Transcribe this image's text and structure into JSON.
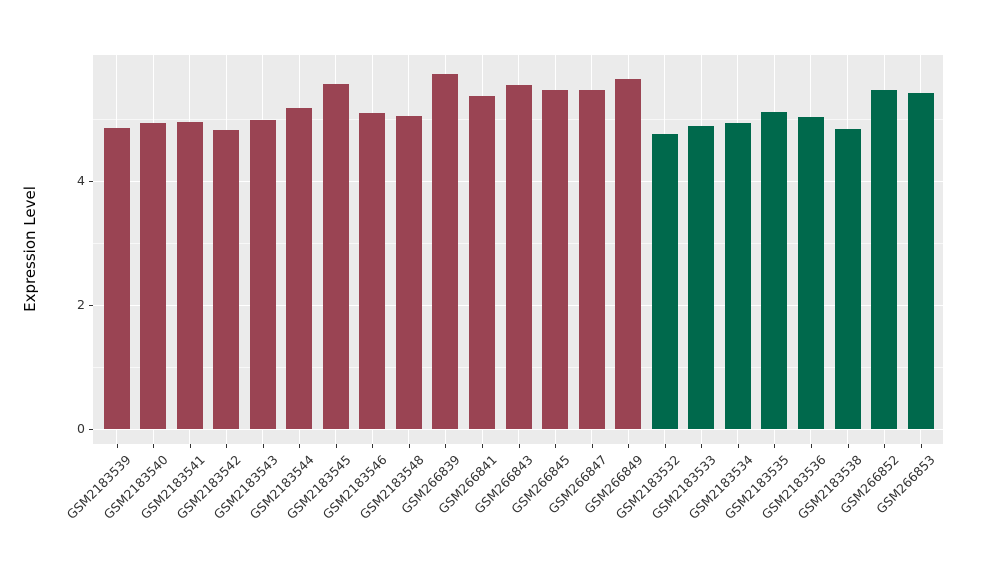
{
  "chart_data": {
    "type": "bar",
    "title": "",
    "xlabel": "",
    "ylabel": "Expression Level",
    "categories": [
      "GSM2183539",
      "GSM2183540",
      "GSM2183541",
      "GSM2183542",
      "GSM2183543",
      "GSM2183544",
      "GSM2183545",
      "GSM2183546",
      "GSM2183548",
      "GSM266839",
      "GSM266841",
      "GSM266843",
      "GSM266845",
      "GSM266847",
      "GSM266849",
      "GSM2183532",
      "GSM2183533",
      "GSM2183534",
      "GSM2183535",
      "GSM2183536",
      "GSM2183538",
      "GSM266852",
      "GSM266853"
    ],
    "values": [
      4.86,
      4.94,
      4.95,
      4.82,
      4.99,
      5.17,
      5.56,
      5.1,
      5.05,
      5.73,
      5.37,
      5.55,
      5.47,
      5.46,
      5.64,
      4.76,
      4.89,
      4.94,
      5.11,
      5.04,
      4.84,
      5.47,
      5.42
    ],
    "bar_colors": [
      "#9A4453",
      "#9A4453",
      "#9A4453",
      "#9A4453",
      "#9A4453",
      "#9A4453",
      "#9A4453",
      "#9A4453",
      "#9A4453",
      "#9A4453",
      "#9A4453",
      "#9A4453",
      "#9A4453",
      "#9A4453",
      "#9A4453",
      "#00694C",
      "#00694C",
      "#00694C",
      "#00694C",
      "#00694C",
      "#00694C",
      "#00694C",
      "#00694C"
    ],
    "group_colors": {
      "group1": "#9A4453",
      "group2": "#00694C"
    },
    "yticks": [
      0,
      2,
      4
    ],
    "minor_gridlines": [
      1,
      3,
      5
    ],
    "ylim": [
      -0.24,
      6.03
    ],
    "grid": true,
    "legend": false,
    "panel_background": "#EBEBEB",
    "gridline_color": "#FFFFFF",
    "axis_text_color": "#333333"
  }
}
